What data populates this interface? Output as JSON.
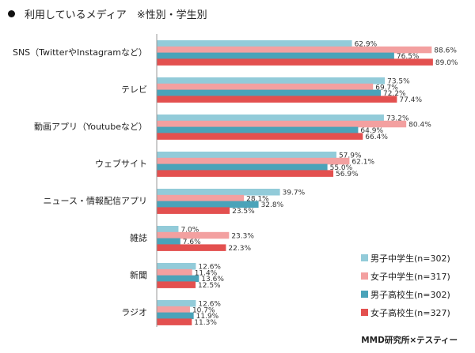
{
  "chart_data": {
    "type": "bar",
    "orientation": "horizontal",
    "title": "利用しているメディア　※性別・学生別",
    "categories": [
      "SNS（TwitterやInstagramなど）",
      "テレビ",
      "動画アプリ（Youtubeなど）",
      "ウェブサイト",
      "ニュース・情報配信アプリ",
      "雑誌",
      "新聞",
      "ラジオ"
    ],
    "series": [
      {
        "name": "男子中学生(n=302)",
        "color": "#92cbd9",
        "values": [
          62.9,
          73.5,
          73.2,
          57.9,
          39.7,
          7.0,
          12.6,
          12.6
        ]
      },
      {
        "name": "女子中学生(n=317)",
        "color": "#f3a0a0",
        "values": [
          88.6,
          69.7,
          80.4,
          62.1,
          28.1,
          23.3,
          11.4,
          10.7
        ]
      },
      {
        "name": "男子高校生(n=302)",
        "color": "#4aa3b9",
        "values": [
          76.5,
          72.2,
          64.9,
          55.0,
          32.8,
          7.6,
          13.6,
          11.9
        ]
      },
      {
        "name": "女子高校生(n=327)",
        "color": "#e3504f",
        "values": [
          89.0,
          77.4,
          66.4,
          56.9,
          23.5,
          22.3,
          12.5,
          11.3
        ]
      }
    ],
    "value_suffix": "%",
    "xlim": [
      0,
      100
    ],
    "legend_position": "bottom-right",
    "grid": false
  },
  "credit": "MMD研究所×テスティー"
}
